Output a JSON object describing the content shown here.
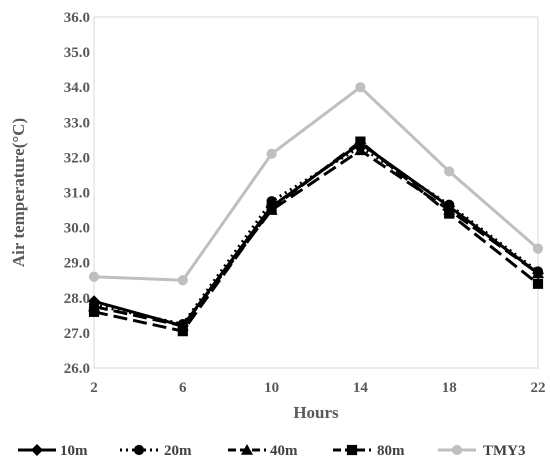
{
  "chart_data": {
    "type": "line",
    "title": "",
    "xlabel": "Hours",
    "ylabel": "Air temperature(°C)",
    "x": [
      2,
      6,
      10,
      14,
      18,
      22
    ],
    "x_tick_labels": [
      "2",
      "6",
      "10",
      "14",
      "18",
      "22"
    ],
    "ylim": [
      26.0,
      36.0
    ],
    "y_tick_labels": [
      "26.0",
      "27.0",
      "28.0",
      "29.0",
      "30.0",
      "31.0",
      "32.0",
      "33.0",
      "34.0",
      "35.0",
      "36.0"
    ],
    "grid": false,
    "legend_position": "bottom",
    "series": [
      {
        "name": "10m",
        "values": [
          27.9,
          27.2,
          30.6,
          32.4,
          30.6,
          28.7
        ],
        "color": "#000000",
        "dash": "solid",
        "marker": "diamond"
      },
      {
        "name": "20m",
        "values": [
          27.8,
          27.25,
          30.75,
          32.3,
          30.65,
          28.75
        ],
        "color": "#000000",
        "dash": "dotted",
        "marker": "circle"
      },
      {
        "name": "40m",
        "values": [
          27.75,
          27.2,
          30.5,
          32.2,
          30.5,
          28.7
        ],
        "color": "#000000",
        "dash": "long-dash",
        "marker": "triangle"
      },
      {
        "name": "80m",
        "values": [
          27.6,
          27.05,
          30.55,
          32.45,
          30.4,
          28.4
        ],
        "color": "#000000",
        "dash": "long-dash",
        "marker": "square"
      },
      {
        "name": "TMY3",
        "values": [
          28.6,
          28.5,
          32.1,
          34.0,
          31.6,
          29.4
        ],
        "color": "#bfbfbf",
        "dash": "solid",
        "marker": "circle"
      }
    ]
  }
}
